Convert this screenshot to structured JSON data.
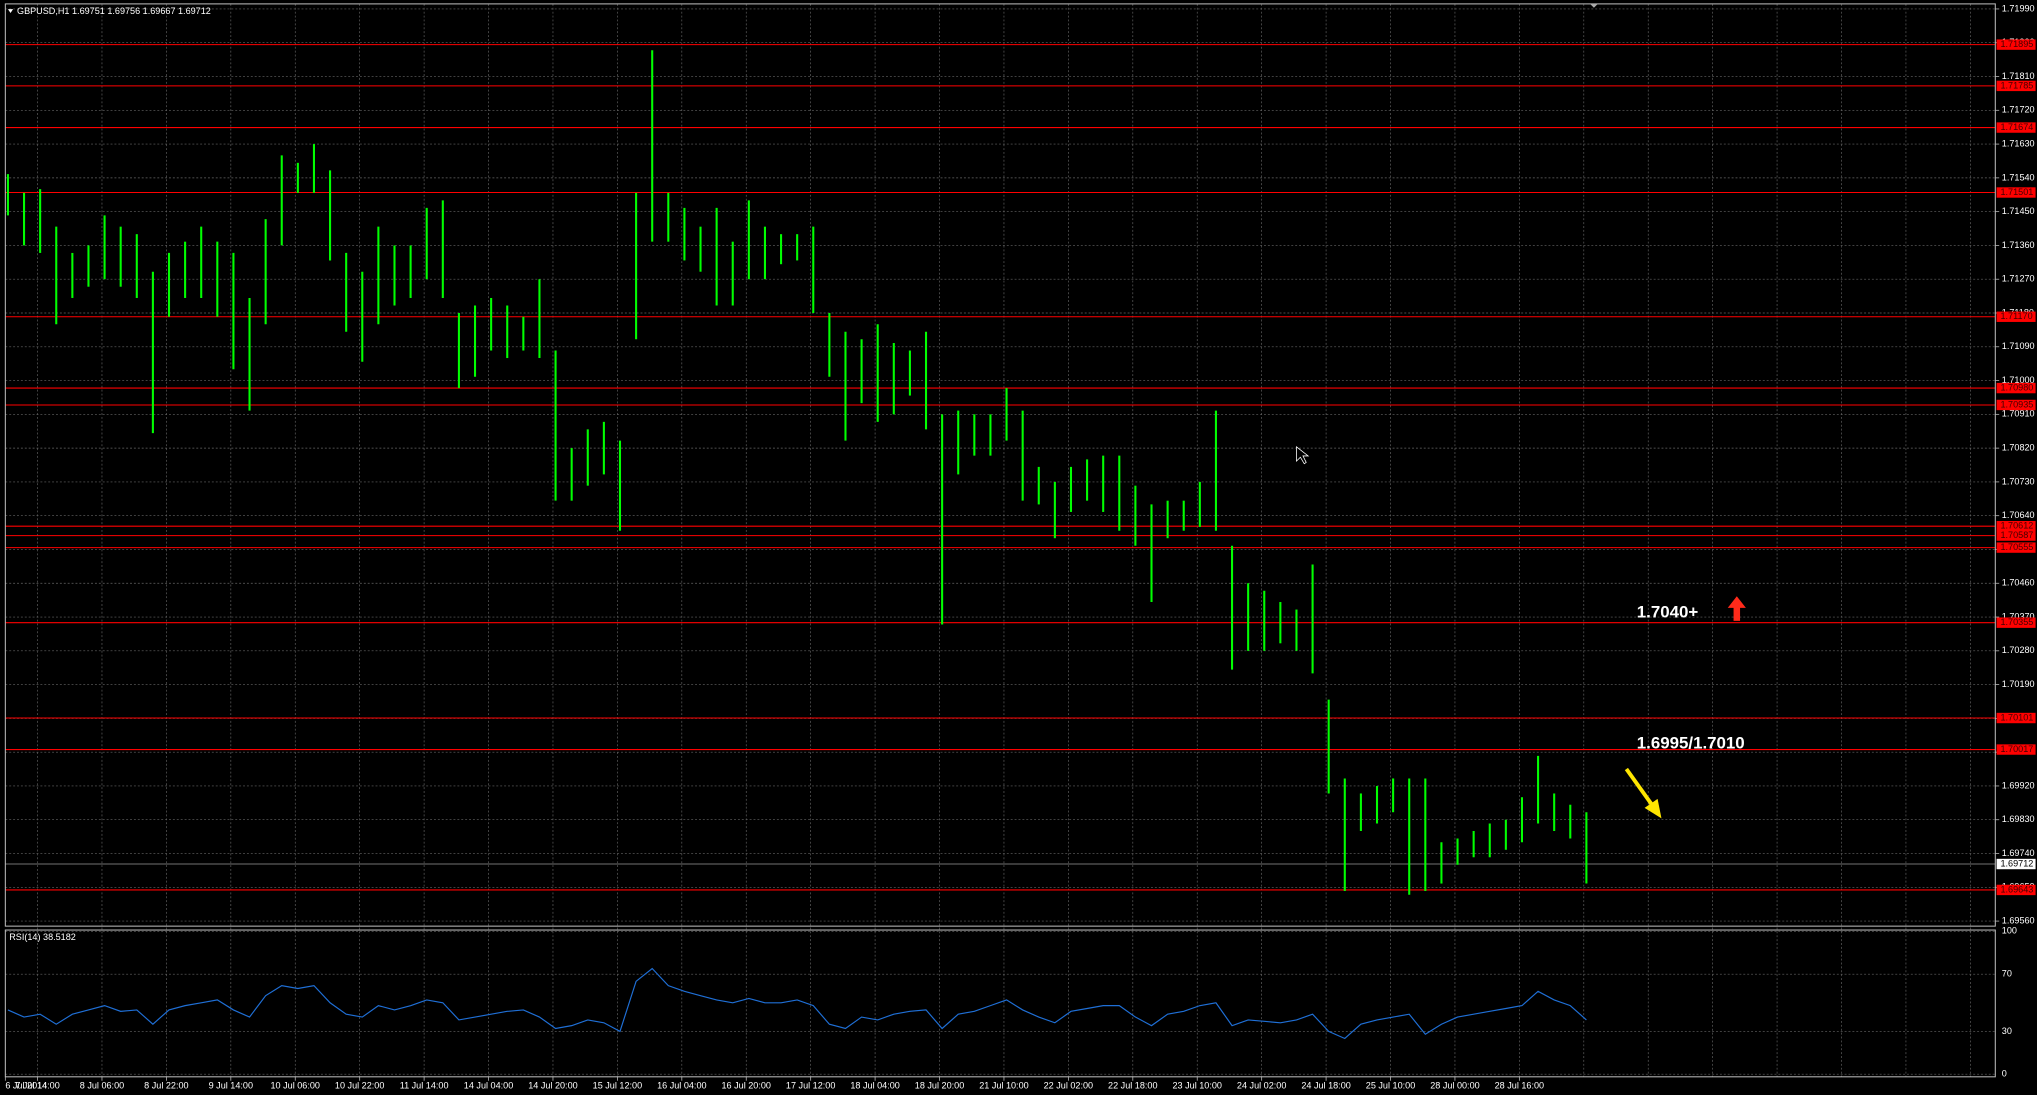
{
  "chart_data": [
    {
      "type": "hilo",
      "title": "GBPUSD,H1  1.69751 1.69756 1.69667 1.69712",
      "color": "#00ff00",
      "categories": [
        "6 Jul 2014",
        null,
        "7 Jul 14:00",
        null,
        null,
        null,
        "8 Jul 06:00",
        null,
        null,
        null,
        "8 Jul 22:00",
        null,
        null,
        null,
        "9 Jul 14:00",
        null,
        null,
        null,
        "10 Jul 06:00",
        null,
        null,
        null,
        "10 Jul 22:00",
        null,
        null,
        null,
        "11 Jul 14:00",
        null,
        null,
        null,
        "14 Jul 04:00",
        null,
        null,
        null,
        "14 Jul 20:00",
        null,
        null,
        null,
        "15 Jul 12:00",
        null,
        null,
        null,
        "16 Jul 04:00",
        null,
        null,
        null,
        "16 Jul 20:00",
        null,
        null,
        null,
        "17 Jul 12:00",
        null,
        null,
        null,
        "18 Jul 04:00",
        null,
        null,
        null,
        "18 Jul 20:00",
        null,
        null,
        null,
        "21 Jul 10:00",
        null,
        null,
        null,
        "22 Jul 02:00",
        null,
        null,
        null,
        "22 Jul 18:00",
        null,
        null,
        null,
        "23 Jul 10:00",
        null,
        null,
        null,
        "24 Jul 02:00",
        null,
        null,
        null,
        "24 Jul 18:00",
        null,
        null,
        null,
        "25 Jul 10:00",
        null,
        null,
        null,
        "28 Jul 00:00",
        null,
        null,
        null,
        "28 Jul 16:00",
        null,
        null,
        null,
        null
      ],
      "high": [
        1.7155,
        1.715,
        1.7151,
        1.7141,
        1.7134,
        1.7136,
        1.7144,
        1.7141,
        1.7139,
        1.7129,
        1.7134,
        1.7137,
        1.7141,
        1.7137,
        1.7134,
        1.7122,
        1.7143,
        1.716,
        1.7158,
        1.7163,
        1.7156,
        1.7134,
        1.7129,
        1.7141,
        1.7136,
        1.7136,
        1.7146,
        1.7148,
        1.7118,
        1.712,
        1.7122,
        1.712,
        1.7117,
        1.7127,
        1.7108,
        1.7082,
        1.7087,
        1.7089,
        1.7084,
        1.715,
        1.7188,
        1.715,
        1.7146,
        1.7141,
        1.7146,
        1.7137,
        1.7148,
        1.7141,
        1.7139,
        1.7139,
        1.7141,
        1.7118,
        1.7113,
        1.7111,
        1.7115,
        1.711,
        1.7108,
        1.7113,
        1.7091,
        1.7092,
        1.7091,
        1.7091,
        1.7098,
        1.7092,
        1.7077,
        1.7073,
        1.7077,
        1.7079,
        1.708,
        1.708,
        1.7072,
        1.7067,
        1.7068,
        1.7068,
        1.7073,
        1.7092,
        1.7056,
        1.7046,
        1.7044,
        1.7041,
        1.7039,
        1.7051,
        1.7015,
        1.6994,
        1.699,
        1.6992,
        1.6994,
        1.6994,
        1.6994,
        1.6977,
        1.6978,
        1.698,
        1.6982,
        1.6983,
        1.6989,
        1.7,
        1.699,
        1.6987,
        1.6985
      ],
      "low": [
        1.7144,
        1.7136,
        1.7134,
        1.7115,
        1.7122,
        1.7125,
        1.7127,
        1.7125,
        1.7122,
        1.7086,
        1.7117,
        1.7122,
        1.7122,
        1.7117,
        1.7103,
        1.7092,
        1.7115,
        1.7136,
        1.715,
        1.715,
        1.7132,
        1.7113,
        1.7105,
        1.7115,
        1.712,
        1.7122,
        1.7127,
        1.7122,
        1.7098,
        1.7101,
        1.7108,
        1.7106,
        1.7108,
        1.7106,
        1.7068,
        1.7068,
        1.7072,
        1.7075,
        1.706,
        1.7111,
        1.7137,
        1.7137,
        1.7132,
        1.7129,
        1.712,
        1.712,
        1.7127,
        1.7127,
        1.7131,
        1.7132,
        1.7118,
        1.7101,
        1.7084,
        1.7094,
        1.7089,
        1.7091,
        1.7096,
        1.7087,
        1.7035,
        1.7075,
        1.708,
        1.708,
        1.7084,
        1.7068,
        1.7067,
        1.7058,
        1.7065,
        1.7068,
        1.7065,
        1.706,
        1.7056,
        1.7041,
        1.7058,
        1.706,
        1.7061,
        1.706,
        1.7023,
        1.7028,
        1.7028,
        1.703,
        1.7028,
        1.7022,
        1.699,
        1.6964,
        1.698,
        1.6982,
        1.6985,
        1.6963,
        1.6964,
        1.6966,
        1.6971,
        1.6973,
        1.6973,
        1.6975,
        1.6977,
        1.6982,
        1.698,
        1.6978,
        1.6966
      ],
      "ylim": [
        1.6955,
        1.72
      ],
      "yticks": [
        {
          "value": 1.7199,
          "label": "1.71990"
        },
        {
          "value": 1.719,
          "label": "1.71900"
        },
        {
          "value": 1.7181,
          "label": "1.71810"
        },
        {
          "value": 1.7172,
          "label": "1.71720"
        },
        {
          "value": 1.7163,
          "label": "1.71630"
        },
        {
          "value": 1.7154,
          "label": "1.71540"
        },
        {
          "value": 1.7145,
          "label": "1.71450"
        },
        {
          "value": 1.7136,
          "label": "1.71360"
        },
        {
          "value": 1.7127,
          "label": "1.71270"
        },
        {
          "value": 1.7118,
          "label": "1.71180"
        },
        {
          "value": 1.7109,
          "label": "1.71090"
        },
        {
          "value": 1.71,
          "label": "1.71000"
        },
        {
          "value": 1.7091,
          "label": "1.70910"
        },
        {
          "value": 1.7082,
          "label": "1.70820"
        },
        {
          "value": 1.7073,
          "label": "1.70730"
        },
        {
          "value": 1.7064,
          "label": "1.70640"
        },
        {
          "value": 1.7055,
          "label": "1.70550"
        },
        {
          "value": 1.7046,
          "label": "1.70460"
        },
        {
          "value": 1.7037,
          "label": "1.70370"
        },
        {
          "value": 1.7028,
          "label": "1.70280"
        },
        {
          "value": 1.7019,
          "label": "1.70190"
        },
        {
          "value": 1.701,
          "label": "1.70100"
        },
        {
          "value": 1.7001,
          "label": "1.70010"
        },
        {
          "value": 1.6992,
          "label": "1.69920"
        },
        {
          "value": 1.6983,
          "label": "1.69830"
        },
        {
          "value": 1.6974,
          "label": "1.69740"
        },
        {
          "value": 1.6965,
          "label": "1.69650"
        },
        {
          "value": 1.6956,
          "label": "1.69560"
        }
      ],
      "levels": [
        {
          "value": 1.71895,
          "label": "1.71895"
        },
        {
          "value": 1.71785,
          "label": "1.71785"
        },
        {
          "value": 1.71674,
          "label": "1.71674"
        },
        {
          "value": 1.71501,
          "label": "1.71501"
        },
        {
          "value": 1.7117,
          "label": "1.71170"
        },
        {
          "value": 1.7098,
          "label": "1.70980"
        },
        {
          "value": 1.70935,
          "label": "1.70935"
        },
        {
          "value": 1.70612,
          "label": "1.70612"
        },
        {
          "value": 1.70587,
          "label": "1.70587"
        },
        {
          "value": 1.70555,
          "label": "1.70555"
        },
        {
          "value": 1.70355,
          "label": "1.70355"
        },
        {
          "value": 1.70101,
          "label": "1.70101"
        },
        {
          "value": 1.70017,
          "label": "1.70017"
        },
        {
          "value": 1.69643,
          "label": "1.69643"
        }
      ],
      "level_color": "#ff0000",
      "last_price": {
        "value": 1.69712,
        "label": "1.69712"
      },
      "annotations": [
        "1.7040+",
        "1.6995/1.7010"
      ],
      "grid": true
    },
    {
      "type": "line",
      "title": "RSI(14) 38.5182",
      "color": "#1f6fd6",
      "values": [
        45,
        40,
        42,
        35,
        42,
        45,
        48,
        44,
        45,
        35,
        45,
        48,
        50,
        52,
        45,
        40,
        55,
        62,
        60,
        62,
        50,
        42,
        40,
        48,
        45,
        48,
        52,
        50,
        38,
        40,
        42,
        44,
        45,
        40,
        32,
        34,
        38,
        36,
        30,
        65,
        74,
        62,
        58,
        55,
        52,
        50,
        53,
        50,
        50,
        52,
        48,
        35,
        32,
        40,
        38,
        42,
        44,
        45,
        32,
        42,
        44,
        48,
        52,
        45,
        40,
        36,
        44,
        46,
        48,
        48,
        40,
        34,
        42,
        44,
        48,
        50,
        34,
        38,
        37,
        36,
        38,
        42,
        30,
        25,
        35,
        38,
        40,
        42,
        28,
        35,
        40,
        42,
        44,
        46,
        48,
        58,
        52,
        48,
        38
      ],
      "ylim": [
        0,
        100
      ],
      "yticks": [
        100,
        70,
        30,
        0
      ],
      "grid": true
    }
  ]
}
